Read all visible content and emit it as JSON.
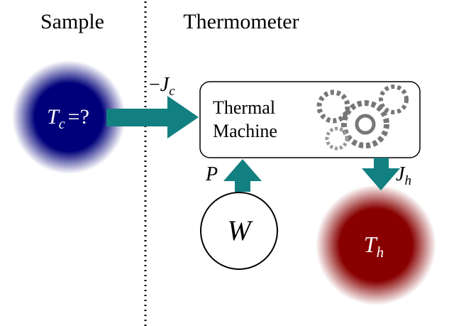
{
  "regions": {
    "left": "Sample",
    "right": "Thermometer"
  },
  "cold_bath": {
    "symbol": "T",
    "subscript": "c",
    "suffix": "=?"
  },
  "heat_in": {
    "prefix": "−",
    "symbol": "J",
    "subscript": "c"
  },
  "machine": {
    "lines": [
      "Thermal",
      "Machine"
    ]
  },
  "power": {
    "symbol": "P"
  },
  "work": {
    "symbol": "W"
  },
  "heat_out": {
    "symbol": "J",
    "subscript": "h"
  },
  "hot_bath": {
    "symbol": "T",
    "subscript": "h"
  }
}
